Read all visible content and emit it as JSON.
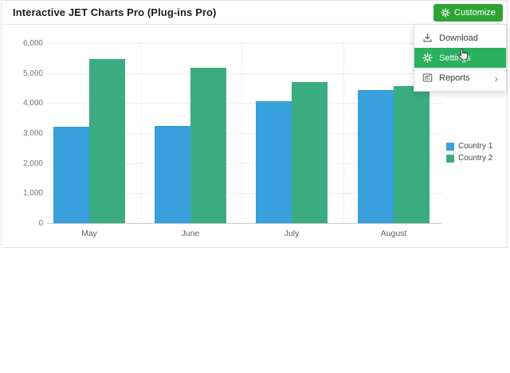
{
  "header": {
    "title": "Interactive JET Charts Pro (Plug-ins Pro)",
    "customize_label": "Customize"
  },
  "menu": {
    "items": [
      {
        "label": "Download",
        "icon": "download-icon",
        "active": false,
        "submenu": false
      },
      {
        "label": "Settings",
        "icon": "gear-icon",
        "active": true,
        "submenu": false
      },
      {
        "label": "Reports",
        "icon": "reports-icon",
        "active": false,
        "submenu": true
      }
    ]
  },
  "chart_data": {
    "type": "bar",
    "categories": [
      "May",
      "June",
      "July",
      "August"
    ],
    "series": [
      {
        "name": "Country 1",
        "color": "#369FDC",
        "values": [
          3200,
          3250,
          4050,
          4430
        ]
      },
      {
        "name": "Country 2",
        "color": "#3BAC81",
        "values": [
          5470,
          5190,
          4700,
          4570
        ]
      }
    ],
    "ylim": [
      0,
      6000
    ],
    "yticks": [
      0,
      1000,
      2000,
      3000,
      4000,
      5000,
      6000
    ],
    "ytick_labels": [
      "0",
      "1,000",
      "2,000",
      "3,000",
      "4,000",
      "5,000",
      "6,000"
    ],
    "grid": true,
    "legend_position": "right",
    "xlabel": "",
    "ylabel": ""
  },
  "colors": {
    "accent_green": "#2FA434",
    "menu_highlight": "#2BB05E",
    "bar_blue": "#369FDC",
    "bar_green": "#3BAC81"
  }
}
